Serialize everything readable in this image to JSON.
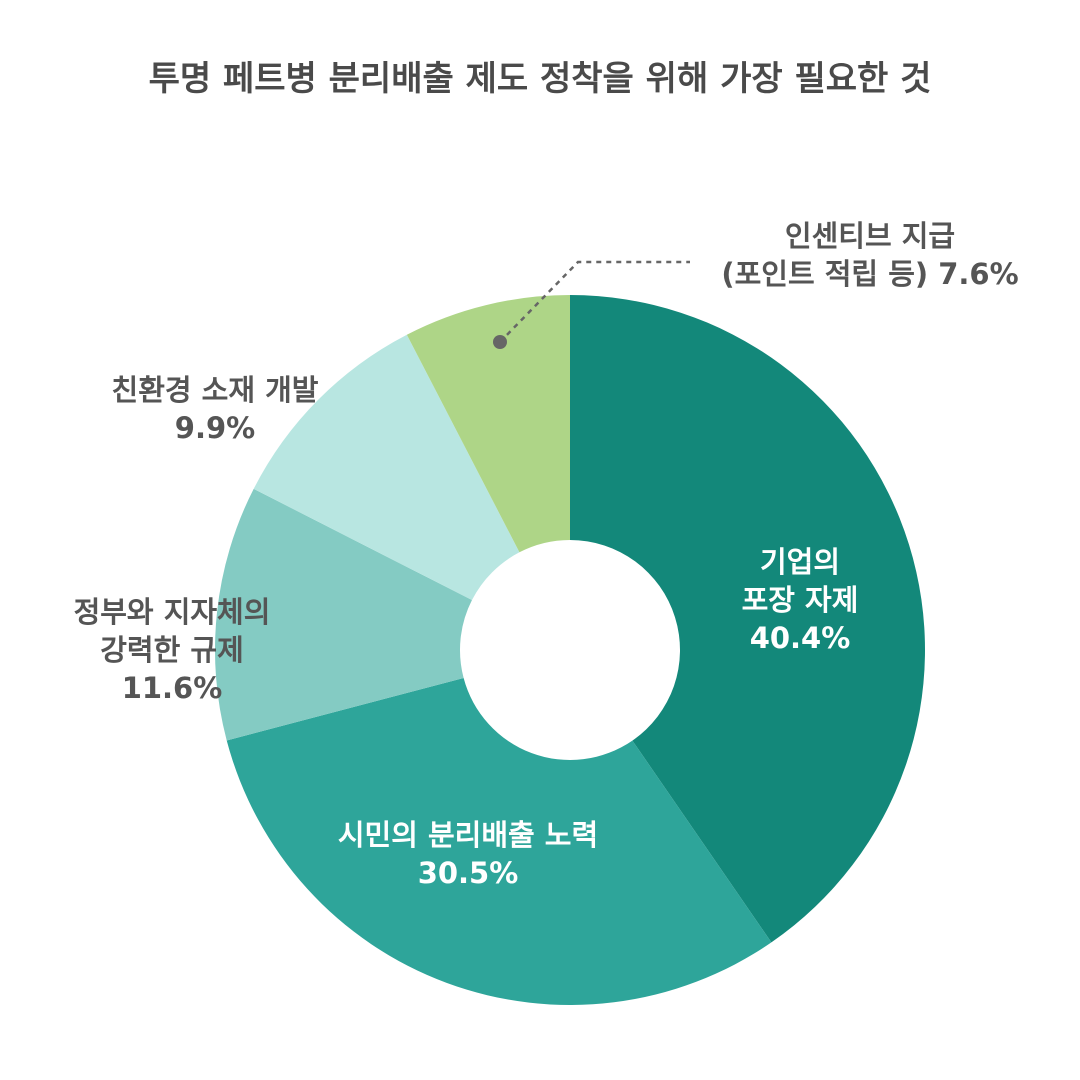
{
  "chart_data": {
    "type": "pie",
    "title": "투명 페트병 분리배출 제도 정착을 위해 가장 필요한 것",
    "unit": "%",
    "slices": [
      {
        "name": "기업의 포장 자제",
        "lines": [
          "기업의",
          "포장 자제"
        ],
        "value": 40.4,
        "value_label": "40.4%",
        "color": "#13887a"
      },
      {
        "name": "시민의 분리배출 노력",
        "lines": [
          "시민의 분리배출 노력"
        ],
        "value": 30.5,
        "value_label": "30.5%",
        "color": "#2ea59a"
      },
      {
        "name": "정부와 지자체의 강력한 규제",
        "lines": [
          "정부와 지자체의",
          "강력한 규제"
        ],
        "value": 11.6,
        "value_label": "11.6%",
        "color": "#84cbc3"
      },
      {
        "name": "친환경 소재 개발",
        "lines": [
          "친환경 소재 개발"
        ],
        "value": 9.9,
        "value_label": "9.9%",
        "color": "#b8e6e1"
      },
      {
        "name": "인센티브 지급 (포인트 적립 등)",
        "lines": [
          "인센티브 지급",
          "(포인트 적립 등) 7.6%"
        ],
        "value": 7.6,
        "value_label": "",
        "color": "#aed587"
      }
    ]
  }
}
